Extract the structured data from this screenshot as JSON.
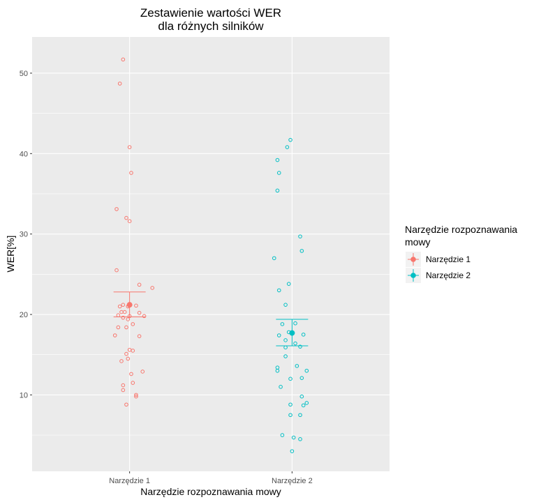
{
  "chart_data": {
    "type": "scatter",
    "title_line1": "Zestawienie wartości WER",
    "title_line2": "dla różnych silników",
    "xlabel": "Narzędzie rozpoznawania mowy",
    "ylabel": "WER[%]",
    "categories": [
      "Narzędzie 1",
      "Narzędzie 2"
    ],
    "ylim": [
      0.5,
      54.5
    ],
    "yticks": [
      10,
      20,
      30,
      40,
      50
    ],
    "grid": true,
    "legend": {
      "title_line1": "Narzędzie rozpoznawania",
      "title_line2": "mowy",
      "position": "right",
      "entries": [
        "Narzędzie 1",
        "Narzędzie 2"
      ]
    },
    "colors": [
      "#F8766D",
      "#00BFC4"
    ],
    "series": [
      {
        "name": "Narzędzie 1",
        "mean": 21.2,
        "ci": [
          19.7,
          22.8
        ],
        "points": [
          [
            0.96,
            51.7
          ],
          [
            0.94,
            48.7
          ],
          [
            1.0,
            40.8
          ],
          [
            1.01,
            37.6
          ],
          [
            0.92,
            33.1
          ],
          [
            0.98,
            32.0
          ],
          [
            1.0,
            31.6
          ],
          [
            0.92,
            25.5
          ],
          [
            1.06,
            23.7
          ],
          [
            1.14,
            23.3
          ],
          [
            0.94,
            21.0
          ],
          [
            0.96,
            21.2
          ],
          [
            0.99,
            21.0
          ],
          [
            1.04,
            21.1
          ],
          [
            0.95,
            20.3
          ],
          [
            0.97,
            20.3
          ],
          [
            1.06,
            20.2
          ],
          [
            0.93,
            19.9
          ],
          [
            0.96,
            19.6
          ],
          [
            1.0,
            19.8
          ],
          [
            1.09,
            19.8
          ],
          [
            0.99,
            19.4
          ],
          [
            0.93,
            18.4
          ],
          [
            0.98,
            18.4
          ],
          [
            1.02,
            18.8
          ],
          [
            0.91,
            17.4
          ],
          [
            1.06,
            17.3
          ],
          [
            1.02,
            15.5
          ],
          [
            1.0,
            15.6
          ],
          [
            0.98,
            15.1
          ],
          [
            0.99,
            14.5
          ],
          [
            0.95,
            14.2
          ],
          [
            1.08,
            12.9
          ],
          [
            1.01,
            12.6
          ],
          [
            1.02,
            11.5
          ],
          [
            0.96,
            11.2
          ],
          [
            0.96,
            10.6
          ],
          [
            1.04,
            10.0
          ],
          [
            1.04,
            9.8
          ],
          [
            0.98,
            8.8
          ]
        ]
      },
      {
        "name": "Narzędzie 2",
        "mean": 17.7,
        "ci": [
          16.1,
          19.4
        ],
        "points": [
          [
            1.99,
            41.7
          ],
          [
            1.97,
            40.8
          ],
          [
            1.91,
            39.2
          ],
          [
            1.92,
            37.6
          ],
          [
            1.91,
            35.4
          ],
          [
            2.05,
            29.7
          ],
          [
            2.06,
            27.9
          ],
          [
            1.89,
            27.0
          ],
          [
            1.98,
            23.8
          ],
          [
            1.92,
            23.0
          ],
          [
            1.96,
            21.2
          ],
          [
            1.94,
            18.8
          ],
          [
            2.02,
            18.9
          ],
          [
            1.98,
            17.8
          ],
          [
            2.0,
            17.7
          ],
          [
            1.92,
            17.4
          ],
          [
            2.07,
            17.5
          ],
          [
            1.96,
            16.8
          ],
          [
            2.02,
            16.4
          ],
          [
            1.96,
            15.9
          ],
          [
            2.05,
            16.0
          ],
          [
            1.96,
            14.8
          ],
          [
            2.03,
            13.6
          ],
          [
            2.09,
            13.0
          ],
          [
            1.91,
            13.4
          ],
          [
            1.91,
            13.0
          ],
          [
            1.99,
            12.0
          ],
          [
            2.06,
            12.1
          ],
          [
            1.93,
            11.0
          ],
          [
            2.06,
            9.8
          ],
          [
            2.09,
            9.0
          ],
          [
            2.07,
            8.7
          ],
          [
            1.99,
            8.8
          ],
          [
            2.05,
            7.5
          ],
          [
            1.99,
            7.5
          ],
          [
            1.94,
            5.0
          ],
          [
            2.01,
            4.7
          ],
          [
            2.05,
            4.5
          ],
          [
            2.0,
            3.0
          ]
        ]
      }
    ]
  }
}
